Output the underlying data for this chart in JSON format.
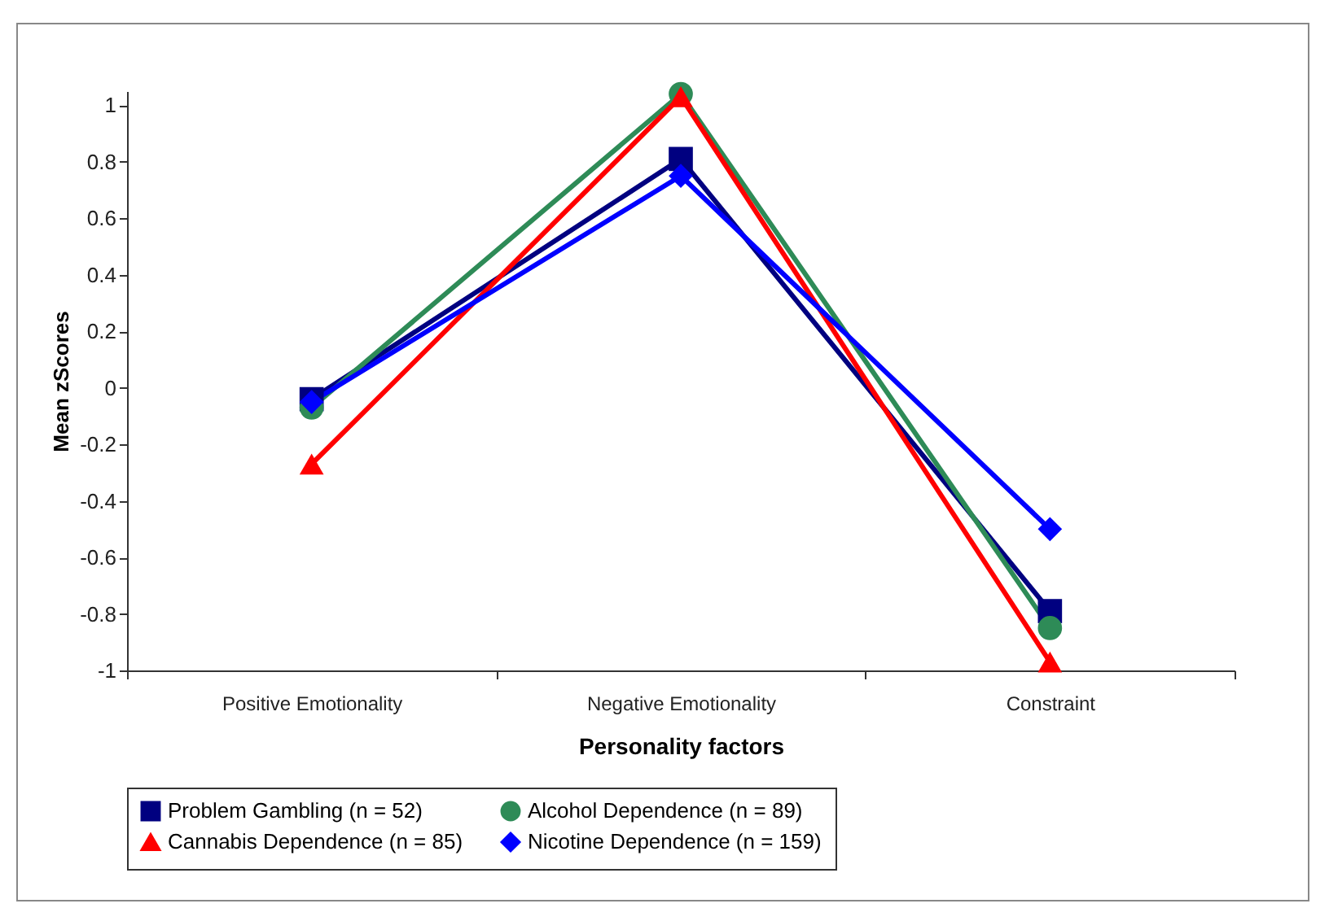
{
  "chart_data": {
    "type": "line",
    "xlabel": "Personality factors",
    "ylabel": "Mean zScores",
    "categories": [
      "Positive Emotionality",
      "Negative Emotionality",
      "Constraint"
    ],
    "series": [
      {
        "name": "Problem Gambling (n = 52)",
        "color": "#000080",
        "marker": "square",
        "values": [
          -0.04,
          0.81,
          -0.79
        ]
      },
      {
        "name": "Alcohol Dependence (n = 89)",
        "color": "#2e8b57",
        "marker": "circle",
        "values": [
          -0.07,
          1.04,
          -0.85
        ]
      },
      {
        "name": "Cannabis Dependence (n = 85)",
        "color": "#ff0000",
        "marker": "triangle",
        "values": [
          -0.27,
          1.03,
          -0.97
        ]
      },
      {
        "name": "Nicotine Dependence (n = 159)",
        "color": "#0000ff",
        "marker": "diamond",
        "values": [
          -0.05,
          0.75,
          -0.5
        ]
      }
    ],
    "ylim": [
      -1,
      1.05
    ],
    "yticks": [
      -1,
      -0.8,
      -0.6,
      -0.4,
      -0.2,
      0,
      0.2,
      0.4,
      0.6,
      0.8,
      1
    ],
    "grid": false,
    "legend": "bottom"
  }
}
